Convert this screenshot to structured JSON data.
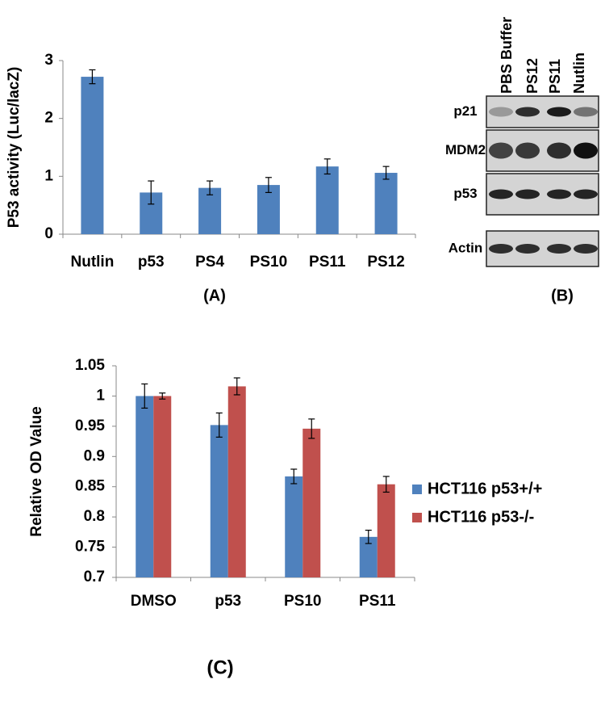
{
  "chart_data": [
    {
      "type": "bar",
      "panel": "(A)",
      "y_label": "P53 activity (Luc/lacZ)",
      "categories": [
        "Nutlin",
        "p53",
        "PS4",
        "PS10",
        "PS11",
        "PS12"
      ],
      "values": [
        2.72,
        0.72,
        0.8,
        0.85,
        1.17,
        1.06
      ],
      "errors": [
        0.12,
        0.2,
        0.12,
        0.13,
        0.13,
        0.11
      ],
      "color": "#4f81bd",
      "ylim": [
        0,
        3
      ],
      "yticks": [
        0,
        1,
        2,
        3
      ],
      "grid": false
    },
    {
      "type": "grouped-bar",
      "panel": "(C)",
      "y_label": "Relative OD Value",
      "categories": [
        "DMSO",
        "p53",
        "PS10",
        "PS11"
      ],
      "series": [
        {
          "name": "HCT116 p53+/+",
          "color": "#4f81bd",
          "values": [
            1.0,
            0.952,
            0.867,
            0.767
          ],
          "errors": [
            0.02,
            0.02,
            0.012,
            0.011
          ]
        },
        {
          "name": "HCT116 p53-/-",
          "color": "#c0504d",
          "values": [
            1.0,
            1.016,
            0.946,
            0.854
          ],
          "errors": [
            0.005,
            0.014,
            0.016,
            0.013
          ]
        }
      ],
      "ylim": [
        0.7,
        1.05
      ],
      "yticks": [
        0.7,
        0.75,
        0.8,
        0.85,
        0.9,
        0.95,
        1,
        1.05
      ],
      "grid": false,
      "legend": "right"
    }
  ],
  "blot": {
    "panel": "(B)",
    "lanes": [
      "PBS Buffer",
      "PS12",
      "PS11",
      "Nutlin"
    ],
    "rows": [
      "p21",
      "MDM2",
      "p53",
      "Actin"
    ]
  }
}
